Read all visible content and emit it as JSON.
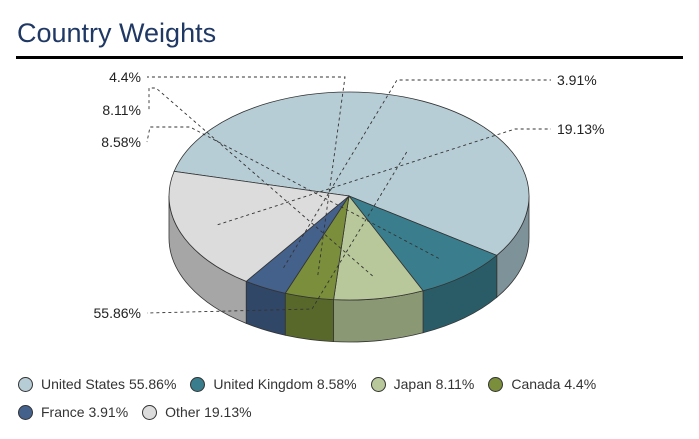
{
  "title": "Country Weights",
  "chart_data": {
    "type": "pie",
    "title": "Country Weights",
    "slices": [
      {
        "name": "United States",
        "value": 55.86,
        "label": "55.86%",
        "legend": "United States 55.86%",
        "color": "#b7cdd5",
        "side": "#7e9299"
      },
      {
        "name": "United Kingdom",
        "value": 8.58,
        "label": "8.58%",
        "legend": "United Kingdom 8.58%",
        "color": "#3a7e8d",
        "side": "#2a5c67"
      },
      {
        "name": "Japan",
        "value": 8.11,
        "label": "8.11%",
        "legend": "Japan 8.11%",
        "color": "#b8c89a",
        "side": "#8a9874"
      },
      {
        "name": "Canada",
        "value": 4.4,
        "label": "4.4%",
        "legend": "Canada 4.4%",
        "color": "#7a8e3c",
        "side": "#58682a"
      },
      {
        "name": "France",
        "value": 3.91,
        "label": "3.91%",
        "legend": "France 3.91%",
        "color": "#44618c",
        "side": "#314767"
      },
      {
        "name": "Other",
        "value": 19.13,
        "label": "19.13%",
        "legend": "Other 19.13%",
        "color": "#dcdcdc",
        "side": "#a6a6a6"
      }
    ],
    "legend_position": "bottom-left"
  }
}
